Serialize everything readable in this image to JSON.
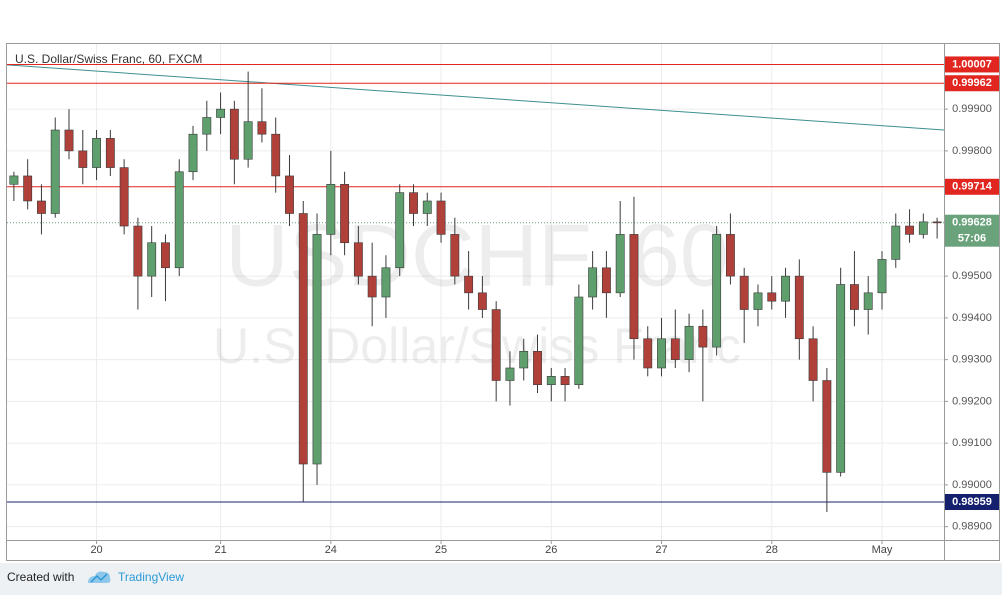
{
  "chart_data": {
    "type": "candlestick",
    "title": "U.S. Dollar/Swiss Franc, 60, FXCM",
    "watermark": [
      "USDCHF, 60",
      "U.S. Dollar/Swiss Franc"
    ],
    "categories": [
      null,
      null,
      null,
      null,
      null,
      null,
      "20",
      null,
      null,
      null,
      null,
      null,
      null,
      null,
      null,
      "21",
      null,
      null,
      null,
      null,
      null,
      null,
      null,
      "24",
      null,
      null,
      null,
      null,
      null,
      null,
      null,
      "25",
      null,
      null,
      null,
      null,
      null,
      null,
      null,
      "26",
      null,
      null,
      null,
      null,
      null,
      null,
      null,
      "27",
      null,
      null,
      null,
      null,
      null,
      null,
      null,
      "28",
      null,
      null,
      null,
      null,
      null,
      null,
      null,
      "May",
      null,
      null,
      null,
      null
    ],
    "open": [
      0.9972,
      0.9974,
      0.9968,
      0.9965,
      0.9985,
      0.998,
      0.9976,
      0.9983,
      0.9976,
      0.9962,
      0.995,
      0.9958,
      0.9952,
      0.9975,
      0.9984,
      0.9988,
      0.999,
      0.9978,
      0.9987,
      0.9984,
      0.9974,
      0.9965,
      0.9905,
      0.996,
      0.9972,
      0.9958,
      0.995,
      0.9945,
      0.9952,
      0.997,
      0.9965,
      0.9968,
      0.996,
      0.995,
      0.9946,
      0.9942,
      0.9925,
      0.9928,
      0.9932,
      0.9924,
      0.9926,
      0.9924,
      0.9945,
      0.9952,
      0.9946,
      0.996,
      0.9935,
      0.9928,
      0.9935,
      0.993,
      0.9938,
      0.9933,
      0.996,
      0.995,
      0.9942,
      0.9946,
      0.9944,
      0.995,
      0.9935,
      0.9925,
      0.9903,
      0.9948,
      0.9942,
      0.9946,
      0.9954,
      0.9962,
      0.996,
      0.9963
    ],
    "high": [
      0.9975,
      0.9978,
      0.9972,
      0.9988,
      0.999,
      0.9985,
      0.9985,
      0.9985,
      0.9978,
      0.9964,
      0.9962,
      0.996,
      0.9978,
      0.9986,
      0.9992,
      0.9994,
      0.9992,
      0.9999,
      0.9995,
      0.9988,
      0.9979,
      0.9968,
      0.9965,
      0.998,
      0.9975,
      0.9962,
      0.9958,
      0.9955,
      0.9972,
      0.9972,
      0.997,
      0.997,
      0.9964,
      0.9956,
      0.995,
      0.9944,
      0.9932,
      0.9935,
      0.9936,
      0.9928,
      0.9928,
      0.9948,
      0.9956,
      0.9956,
      0.9968,
      0.9969,
      0.9938,
      0.994,
      0.9942,
      0.9941,
      0.9942,
      0.9962,
      0.9965,
      0.9952,
      0.9948,
      0.995,
      0.9952,
      0.9954,
      0.9938,
      0.9928,
      0.9952,
      0.9956,
      0.995,
      0.9956,
      0.9965,
      0.9966,
      0.9965,
      0.9964
    ],
    "low": [
      0.9968,
      0.9966,
      0.996,
      0.9964,
      0.9978,
      0.9972,
      0.9973,
      0.9974,
      0.996,
      0.9942,
      0.9945,
      0.9944,
      0.995,
      0.9973,
      0.998,
      0.9984,
      0.9972,
      0.9976,
      0.9982,
      0.997,
      0.9962,
      0.98959,
      0.99,
      0.9955,
      0.9955,
      0.9948,
      0.9938,
      0.994,
      0.995,
      0.9962,
      0.9962,
      0.9958,
      0.9948,
      0.9942,
      0.994,
      0.992,
      0.9919,
      0.9925,
      0.9922,
      0.992,
      0.992,
      0.9923,
      0.9942,
      0.994,
      0.9945,
      0.993,
      0.9926,
      0.9926,
      0.9928,
      0.9927,
      0.992,
      0.9931,
      0.9948,
      0.9934,
      0.9938,
      0.9942,
      0.994,
      0.993,
      0.992,
      0.98935,
      0.9902,
      0.9938,
      0.9936,
      0.9942,
      0.9952,
      0.9958,
      0.9959,
      0.9959
    ],
    "close": [
      0.9974,
      0.9968,
      0.9965,
      0.9985,
      0.998,
      0.9976,
      0.9983,
      0.9976,
      0.9962,
      0.995,
      0.9958,
      0.9952,
      0.9975,
      0.9984,
      0.9988,
      0.999,
      0.9978,
      0.9987,
      0.9984,
      0.9974,
      0.9965,
      0.9905,
      0.996,
      0.9972,
      0.9958,
      0.995,
      0.9945,
      0.9952,
      0.997,
      0.9965,
      0.9968,
      0.996,
      0.995,
      0.9946,
      0.9942,
      0.9925,
      0.9928,
      0.9932,
      0.9924,
      0.9926,
      0.9924,
      0.9945,
      0.9952,
      0.9946,
      0.996,
      0.9935,
      0.9928,
      0.9935,
      0.993,
      0.9938,
      0.9933,
      0.996,
      0.995,
      0.9942,
      0.9946,
      0.9944,
      0.995,
      0.9935,
      0.9925,
      0.9903,
      0.9948,
      0.9942,
      0.9946,
      0.9954,
      0.9962,
      0.996,
      0.9963,
      0.99628
    ],
    "up_color": "#5e9f6d",
    "down_color": "#b0403a",
    "wick_color": "#3a3a3a",
    "ylim": [
      0.98868,
      1.00056
    ],
    "yticks": [
      {
        "value": 0.989,
        "label": "0.98900"
      },
      {
        "value": 0.99,
        "label": "0.99000"
      },
      {
        "value": 0.991,
        "label": "0.99100"
      },
      {
        "value": 0.992,
        "label": "0.99200"
      },
      {
        "value": 0.993,
        "label": "0.99300"
      },
      {
        "value": 0.994,
        "label": "0.99400"
      },
      {
        "value": 0.995,
        "label": "0.99500"
      },
      {
        "value": 0.998,
        "label": "0.99800"
      },
      {
        "value": 0.999,
        "label": "0.99900"
      }
    ],
    "grid": true,
    "levels": [
      {
        "value": 1.00007,
        "color": "#e0261f"
      },
      {
        "value": 0.99962,
        "color": "#e0261f"
      },
      {
        "value": 0.99714,
        "color": "#e0261f"
      },
      {
        "value": 0.98959,
        "color": "#14206e"
      }
    ],
    "trendline": {
      "values": [
        1.00006,
        0.9985
      ],
      "color": "#3e8f8f"
    },
    "current_price": 0.99628,
    "current_color": "#6aa27c",
    "countdown": "57:06"
  },
  "footer": {
    "prefix": "Created with",
    "brand": "TradingView"
  }
}
